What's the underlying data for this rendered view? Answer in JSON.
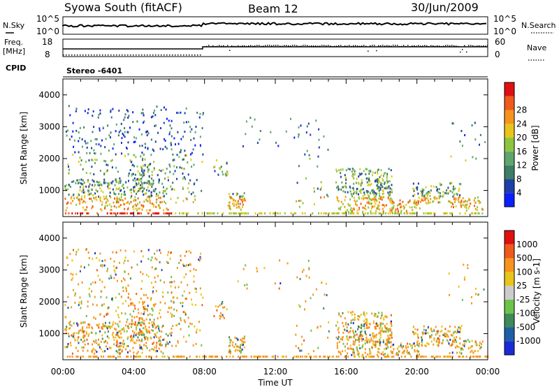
{
  "header": {
    "station": "Syowa South (fitACF)",
    "beam": "Beam 12",
    "date": "30/Jun/2009"
  },
  "strip_panels": {
    "nsky_label": "N.Sky",
    "nsearch_label": "N.Search",
    "nsky_ticks": [
      "10^5",
      "10^0"
    ],
    "nsearch_ticks": [
      "10^5",
      "10^0"
    ],
    "freq_label_line1": "Freq.",
    "freq_label_line2": "[MHz]",
    "freq_ticks": [
      "18",
      "8"
    ],
    "nave_label": "Nave",
    "nave_ticks": [
      "60",
      "0"
    ],
    "cpid_label": "CPID",
    "cpid_value": "Stereo -6401"
  },
  "colors": {
    "power_scale": [
      "#0a1fff",
      "#1f3fa8",
      "#3e7d66",
      "#5ea66b",
      "#8cc63f",
      "#e8c51a",
      "#f7941d",
      "#f05a1a",
      "#e01010"
    ],
    "velocity_scale": [
      "#1a2bd6",
      "#1e5fa8",
      "#3e8a5a",
      "#6cc24a",
      "#cccccc",
      "#e8c51a",
      "#f7941d",
      "#f05a1a",
      "#e01010"
    ]
  },
  "chart_data": [
    {
      "type": "heatmap",
      "panel": "power",
      "ylabel": "Slant Range [km]",
      "ylim": [
        180,
        4500
      ],
      "yticks": [
        "1000",
        "2000",
        "3000",
        "4000"
      ],
      "colorbar_label": "Power [dB]",
      "colorbar_ticks": [
        "4",
        "8",
        "12",
        "16",
        "20",
        "24",
        "28"
      ],
      "clim": [
        0,
        32
      ]
    },
    {
      "type": "heatmap",
      "panel": "velocity",
      "ylabel": "Slant Range [km]",
      "ylim": [
        180,
        4500
      ],
      "yticks": [
        "1000",
        "2000",
        "3000",
        "4000"
      ],
      "colorbar_label": "Velocity [m s-1]",
      "colorbar_ticks": [
        "1000",
        "500",
        "100",
        "25",
        "-25",
        "-100",
        "-500",
        "-1000"
      ]
    }
  ],
  "xaxis": {
    "label": "Time UT",
    "ticks": [
      "00:00",
      "04:00",
      "08:00",
      "12:00",
      "16:00",
      "20:00",
      "00:00"
    ]
  }
}
